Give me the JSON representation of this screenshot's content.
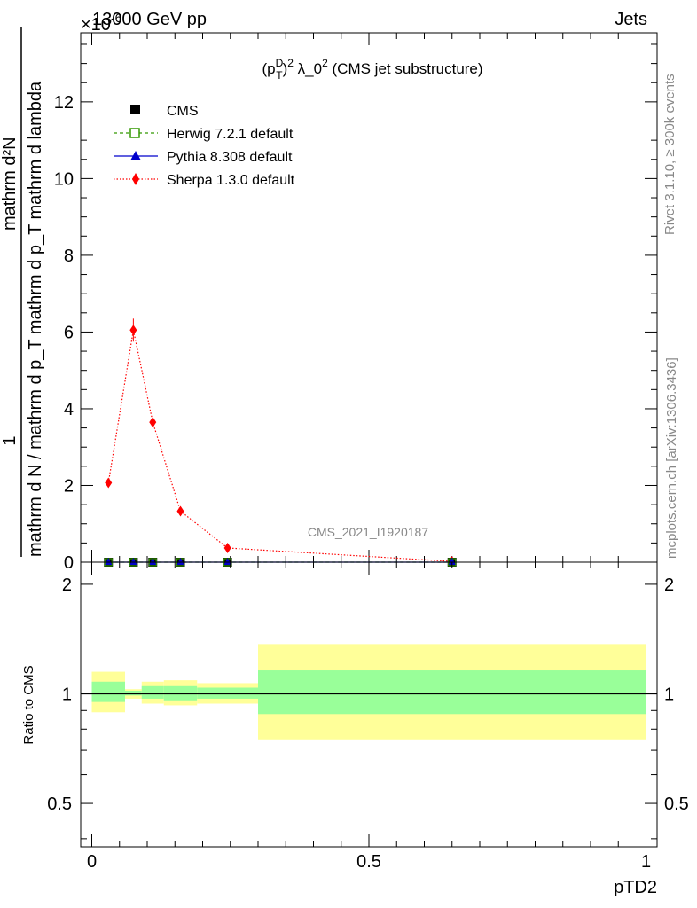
{
  "header": {
    "left": "13000 GeV pp",
    "right": "Jets"
  },
  "side_labels": {
    "rivet": "Rivet 3.1.10, ≥ 300k events",
    "mcplots": "mcplots.cern.ch [arXiv:1306.3436]"
  },
  "colors": {
    "cms": "#000000",
    "herwig": "#339900",
    "pythia": "#0000cc",
    "sherpa": "#ff0000",
    "band_inner": "#99ff99",
    "band_outer": "#ffff99"
  },
  "chart_data": [
    {
      "type": "scatter",
      "title": "(p_T^D)^2 λ_0^2 (CMS jet substructure)",
      "title_parts": {
        "open": "(p",
        "sup_d": "D",
        "sub_t": "T",
        "close": ")",
        "sup_2": "2",
        "lambda": " λ_0",
        "sup_2b": "2",
        "rest": " (CMS jet substructure)"
      },
      "watermark": "CMS_2021_I1920187",
      "exponent_label": "×10",
      "exponent_value": "-6",
      "ylabel_numerator": "1",
      "ylabel_denominator": "mathrm d N / mathrm d p_T mathrm d p_T mathrm d lambda",
      "ylabel_top": "mathrm d²N",
      "ylim": [
        0,
        13.8
      ],
      "xlim": [
        -0.02,
        1.02
      ],
      "yticks": [
        0,
        2,
        4,
        6,
        8,
        10,
        12
      ],
      "ytick_labels": [
        "0",
        "2",
        "4",
        "6",
        "8",
        "10",
        "12"
      ],
      "legend_position": "top-left",
      "series": [
        {
          "name": "CMS",
          "marker": "square",
          "x": [
            0.03,
            0.075,
            0.11,
            0.16,
            0.245,
            0.65
          ],
          "y": [
            0.0,
            0.0,
            0.0,
            0.0,
            0.0,
            0.0
          ]
        },
        {
          "name": "Herwig 7.2.1 default",
          "marker": "open-square",
          "line": "dashed",
          "x": [
            0.03,
            0.075,
            0.11,
            0.16,
            0.245,
            0.65
          ],
          "y": [
            0.0,
            0.0,
            0.0,
            0.0,
            0.0,
            0.0
          ]
        },
        {
          "name": "Pythia 8.308 default",
          "marker": "triangle",
          "line": "solid",
          "x": [
            0.03,
            0.075,
            0.11,
            0.16,
            0.245,
            0.65
          ],
          "y": [
            0.0,
            0.0,
            0.0,
            0.0,
            0.0,
            0.0
          ]
        },
        {
          "name": "Sherpa 1.3.0 default",
          "marker": "diamond",
          "line": "dotted",
          "x": [
            0.03,
            0.075,
            0.11,
            0.16,
            0.245,
            0.65
          ],
          "y": [
            2.07,
            6.05,
            3.65,
            1.33,
            0.37,
            0.02
          ]
        }
      ]
    },
    {
      "type": "area",
      "ylabel": "Ratio to CMS",
      "xlabel": "pTD2",
      "ylim": [
        0.38,
        2.3
      ],
      "xlim": [
        -0.02,
        1.02
      ],
      "yticks": [
        0.5,
        1,
        2
      ],
      "ytick_labels": [
        "0.5",
        "1",
        "2"
      ],
      "xticks": [
        0,
        0.5,
        1
      ],
      "xtick_labels": [
        "0",
        "0.5",
        "1"
      ],
      "reference_line": 1,
      "bins": [
        {
          "x0": 0.0,
          "x1": 0.06,
          "inner": [
            0.95,
            1.08
          ],
          "outer": [
            0.89,
            1.15
          ]
        },
        {
          "x0": 0.06,
          "x1": 0.09,
          "inner": [
            0.99,
            1.02
          ],
          "outer": [
            0.97,
            1.03
          ]
        },
        {
          "x0": 0.09,
          "x1": 0.13,
          "inner": [
            0.97,
            1.05
          ],
          "outer": [
            0.94,
            1.08
          ]
        },
        {
          "x0": 0.13,
          "x1": 0.19,
          "inner": [
            0.96,
            1.05
          ],
          "outer": [
            0.93,
            1.09
          ]
        },
        {
          "x0": 0.19,
          "x1": 0.3,
          "inner": [
            0.97,
            1.04
          ],
          "outer": [
            0.94,
            1.07
          ]
        },
        {
          "x0": 0.3,
          "x1": 1.0,
          "inner": [
            0.88,
            1.16
          ],
          "outer": [
            0.75,
            1.37
          ]
        }
      ]
    }
  ]
}
